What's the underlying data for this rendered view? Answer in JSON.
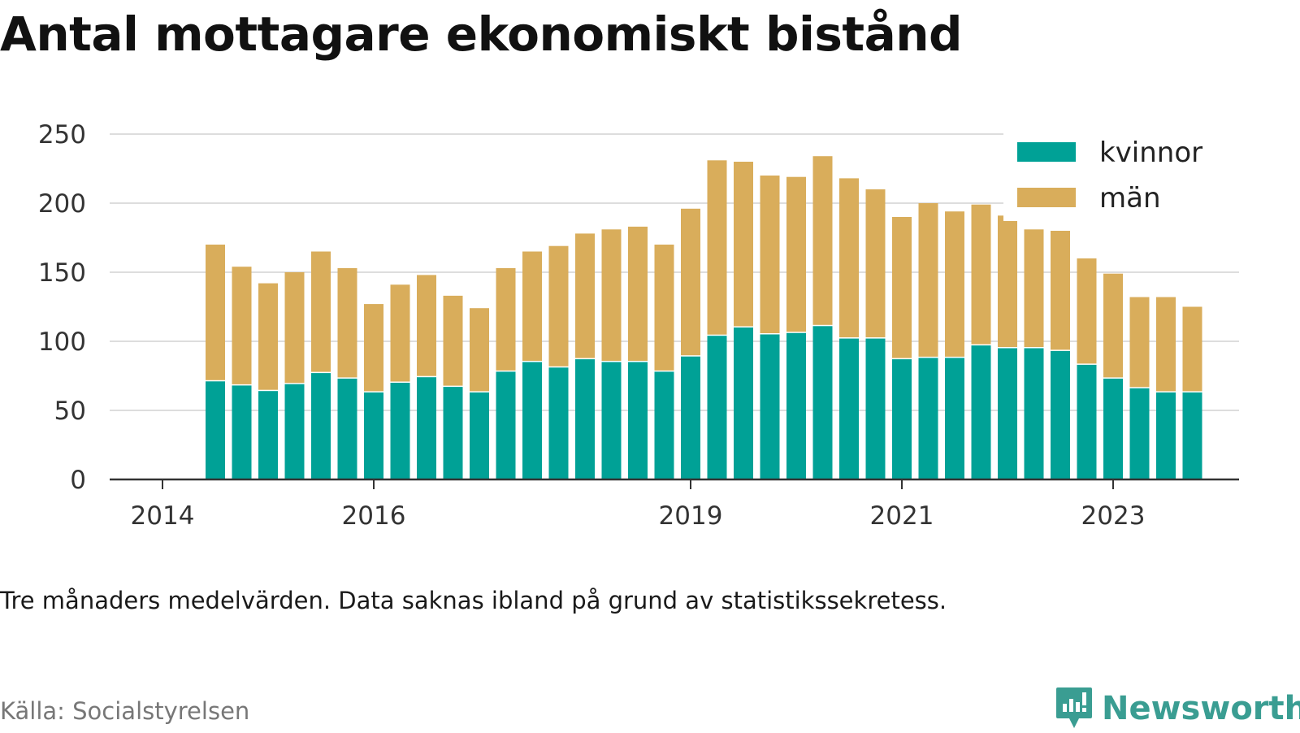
{
  "title": "Antal mottagare ekonomiskt bistånd",
  "note": "Tre månaders medelvärden. Data saknas ibland på grund av statistikssekretess.",
  "source": "Källa: Socialstyrelsen",
  "brand": {
    "name": "Newsworthy",
    "icon": "newsworthy-logo-icon",
    "color": "#3a9d92"
  },
  "colors": {
    "kvinnor": "#00a196",
    "man": "#d9ad5b",
    "grid": "#dddddd",
    "axis": "#333333",
    "text": "#333333"
  },
  "chart_data": {
    "type": "bar",
    "stacked": true,
    "ylim": [
      0,
      250
    ],
    "yticks": [
      0,
      50,
      100,
      150,
      200,
      250
    ],
    "xlim": [
      2014,
      2024.25
    ],
    "xticks": [
      {
        "value": 2014,
        "label": "2014"
      },
      {
        "value": 2016,
        "label": "2016"
      },
      {
        "value": 2019,
        "label": "2019"
      },
      {
        "value": 2021,
        "label": "2021"
      },
      {
        "value": 2023,
        "label": "2023"
      }
    ],
    "grid": true,
    "legend": "top-right",
    "x": [
      2014.5,
      2014.75,
      2015.0,
      2015.25,
      2015.5,
      2015.75,
      2016.0,
      2016.25,
      2016.5,
      2016.75,
      2017.0,
      2017.25,
      2017.5,
      2017.75,
      2018.0,
      2018.25,
      2018.5,
      2018.75,
      2019.0,
      2019.25,
      2019.5,
      2019.75,
      2020.0,
      2020.25,
      2020.5,
      2020.75,
      2021.0,
      2021.25,
      2021.5,
      2021.75,
      2022.0,
      2022.25,
      2022.5,
      2022.75,
      2023.0,
      2023.25,
      2023.5,
      2023.75
    ],
    "series": [
      {
        "name": "kvinnor",
        "values": [
          71,
          68,
          64,
          69,
          77,
          73,
          63,
          70,
          74,
          67,
          63,
          78,
          85,
          81,
          87,
          85,
          85,
          78,
          89,
          104,
          110,
          105,
          106,
          111,
          102,
          102,
          87,
          88,
          88,
          97,
          95,
          95,
          93,
          83,
          73,
          66,
          63,
          63
        ]
      },
      {
        "name": "män",
        "values": [
          99,
          86,
          78,
          81,
          88,
          80,
          64,
          71,
          74,
          66,
          61,
          75,
          80,
          88,
          91,
          96,
          98,
          92,
          107,
          127,
          120,
          115,
          113,
          123,
          116,
          108,
          103,
          112,
          106,
          102,
          96,
          86,
          87,
          77,
          76,
          66,
          69,
          62
        ]
      }
    ]
  }
}
